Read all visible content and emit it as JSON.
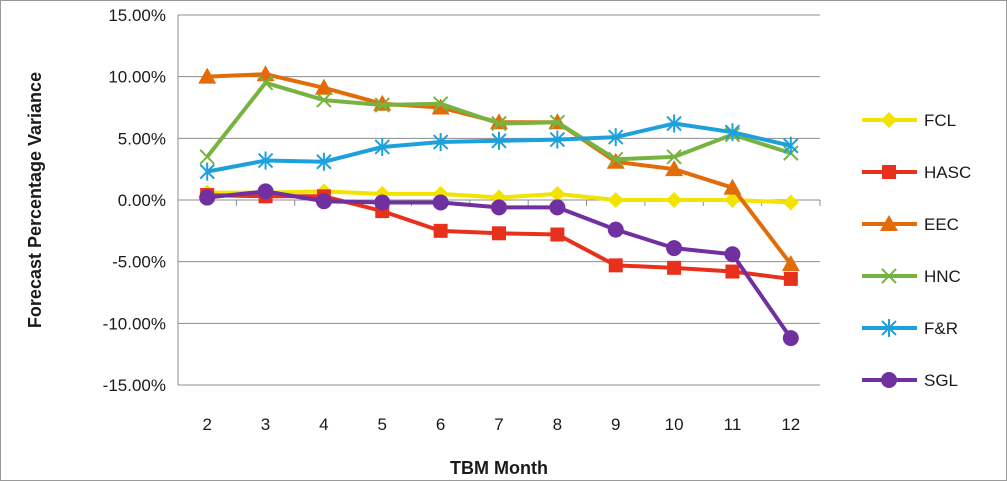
{
  "chart_data": {
    "type": "line",
    "title": "",
    "xlabel": "TBM Month",
    "ylabel": "Forecast Percentage Variance",
    "x": [
      "2",
      "3",
      "4",
      "5",
      "6",
      "7",
      "8",
      "9",
      "10",
      "11",
      "12"
    ],
    "ylim": [
      -0.15,
      0.15
    ],
    "yticks": [
      0.15,
      0.1,
      0.05,
      0.0,
      -0.05,
      -0.1,
      -0.15
    ],
    "ytick_labels": [
      "15.00%",
      "10.00%",
      "5.00%",
      "0.00%",
      "-5.00%",
      "-10.00%",
      "-15.00%"
    ],
    "grid": "horizontal",
    "legend_position": "right",
    "series": [
      {
        "name": "FCL",
        "color": "#f2e400",
        "marker": "diamond",
        "values": [
          0.006,
          0.006,
          0.007,
          0.005,
          0.005,
          0.002,
          0.005,
          0.0,
          0.0,
          0.0,
          -0.002
        ]
      },
      {
        "name": "HASC",
        "color": "#e8311c",
        "marker": "square",
        "values": [
          0.004,
          0.003,
          0.003,
          -0.009,
          -0.025,
          -0.027,
          -0.028,
          -0.053,
          -0.055,
          -0.058,
          -0.064
        ]
      },
      {
        "name": "EEC",
        "color": "#e36c09",
        "marker": "triangle",
        "values": [
          0.1,
          0.102,
          0.091,
          0.078,
          0.075,
          0.063,
          0.063,
          0.031,
          0.025,
          0.01,
          -0.052
        ]
      },
      {
        "name": "HNC",
        "color": "#77b341",
        "marker": "x",
        "values": [
          0.035,
          0.095,
          0.081,
          0.077,
          0.078,
          0.062,
          0.063,
          0.033,
          0.035,
          0.053,
          0.038
        ]
      },
      {
        "name": "F&R",
        "color": "#1da1dc",
        "marker": "asterisk",
        "values": [
          0.023,
          0.032,
          0.031,
          0.043,
          0.047,
          0.048,
          0.049,
          0.051,
          0.062,
          0.055,
          0.044
        ]
      },
      {
        "name": "SGL",
        "color": "#7030a0",
        "marker": "circle",
        "values": [
          0.002,
          0.007,
          -0.001,
          -0.002,
          -0.002,
          -0.006,
          -0.006,
          -0.024,
          -0.039,
          -0.044,
          -0.112
        ]
      }
    ]
  }
}
